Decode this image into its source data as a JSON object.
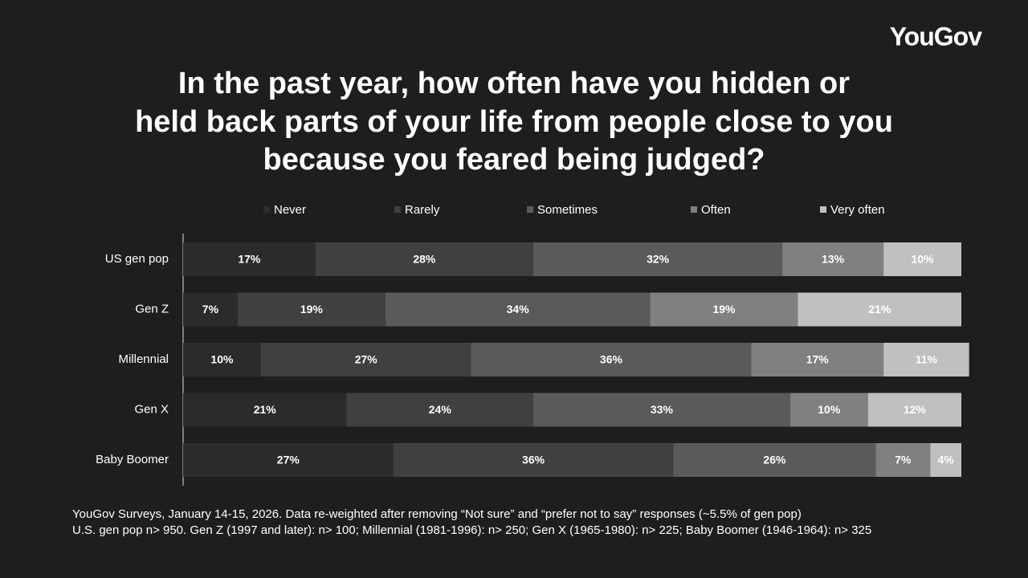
{
  "brand": "YouGov",
  "chart_data": {
    "type": "stacked-bar-horizontal",
    "title": [
      "In the past year, how often have you hidden or",
      "held back parts of your life from people close to you",
      "because you feared being judged?"
    ],
    "categories": [
      "US gen pop",
      "Gen Z",
      "Millennial",
      "Gen X",
      "Baby Boomer"
    ],
    "xlim": [
      0,
      100
    ],
    "series": [
      {
        "name": "Never",
        "color": "#2b2b2b",
        "values": [
          17,
          7,
          10,
          21,
          27
        ],
        "value_labels": [
          "17%",
          "7%",
          "10%",
          "21%",
          "27%"
        ]
      },
      {
        "name": "Rarely",
        "color": "#404040",
        "values": [
          28,
          19,
          27,
          24,
          36
        ],
        "value_labels": [
          "28%",
          "19%",
          "27%",
          "24%",
          "36%"
        ]
      },
      {
        "name": "Sometimes",
        "color": "#5a5a5a",
        "values": [
          32,
          34,
          36,
          33,
          26
        ],
        "value_labels": [
          "32%",
          "34%",
          "36%",
          "33%",
          "26%"
        ]
      },
      {
        "name": "Often",
        "color": "#808080",
        "values": [
          13,
          19,
          17,
          10,
          7
        ],
        "value_labels": [
          "13%",
          "19%",
          "17%",
          "10%",
          "7%"
        ]
      },
      {
        "name": "Very often",
        "color": "#c0c0c0",
        "values": [
          10,
          21,
          11,
          12,
          4
        ],
        "value_labels": [
          "10%",
          "21%",
          "11%",
          "12%",
          "4%"
        ]
      }
    ],
    "notes": [
      "YouGov Surveys, January 14-15, 2026. Data re-weighted after removing “Not sure” and “prefer not to say” responses (~5.5% of gen pop)",
      "U.S. gen pop n> 950. Gen Z (1997 and later): n> 100; Millennial (1981-1996): n> 250; Gen X (1965-1980): n> 225; Baby Boomer (1946-1964): n> 325"
    ]
  }
}
